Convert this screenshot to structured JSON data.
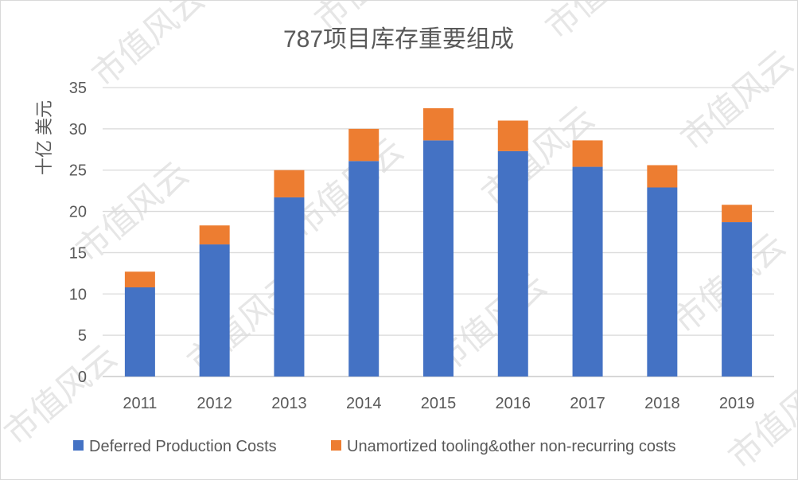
{
  "watermark": "市值风云",
  "chart_data": {
    "type": "bar",
    "stacked": true,
    "title": "787项目库存重要组成",
    "xlabel": "",
    "ylabel": "十亿 美元",
    "categories": [
      "2011",
      "2012",
      "2013",
      "2014",
      "2015",
      "2016",
      "2017",
      "2018",
      "2019"
    ],
    "series": [
      {
        "name": "Deferred Production Costs",
        "color": "#4472c4",
        "values": [
          10.8,
          16.0,
          21.7,
          26.1,
          28.6,
          27.3,
          25.4,
          22.9,
          18.7
        ]
      },
      {
        "name": "Unamortized tooling&other non-recurring costs",
        "color": "#ed7d31",
        "values": [
          1.9,
          2.3,
          3.3,
          3.9,
          3.9,
          3.7,
          3.2,
          2.7,
          2.1
        ]
      }
    ],
    "ylim": [
      0,
      35
    ],
    "yticks": [
      0,
      5,
      10,
      15,
      20,
      25,
      30,
      35
    ],
    "grid": true,
    "legend_position": "bottom"
  }
}
